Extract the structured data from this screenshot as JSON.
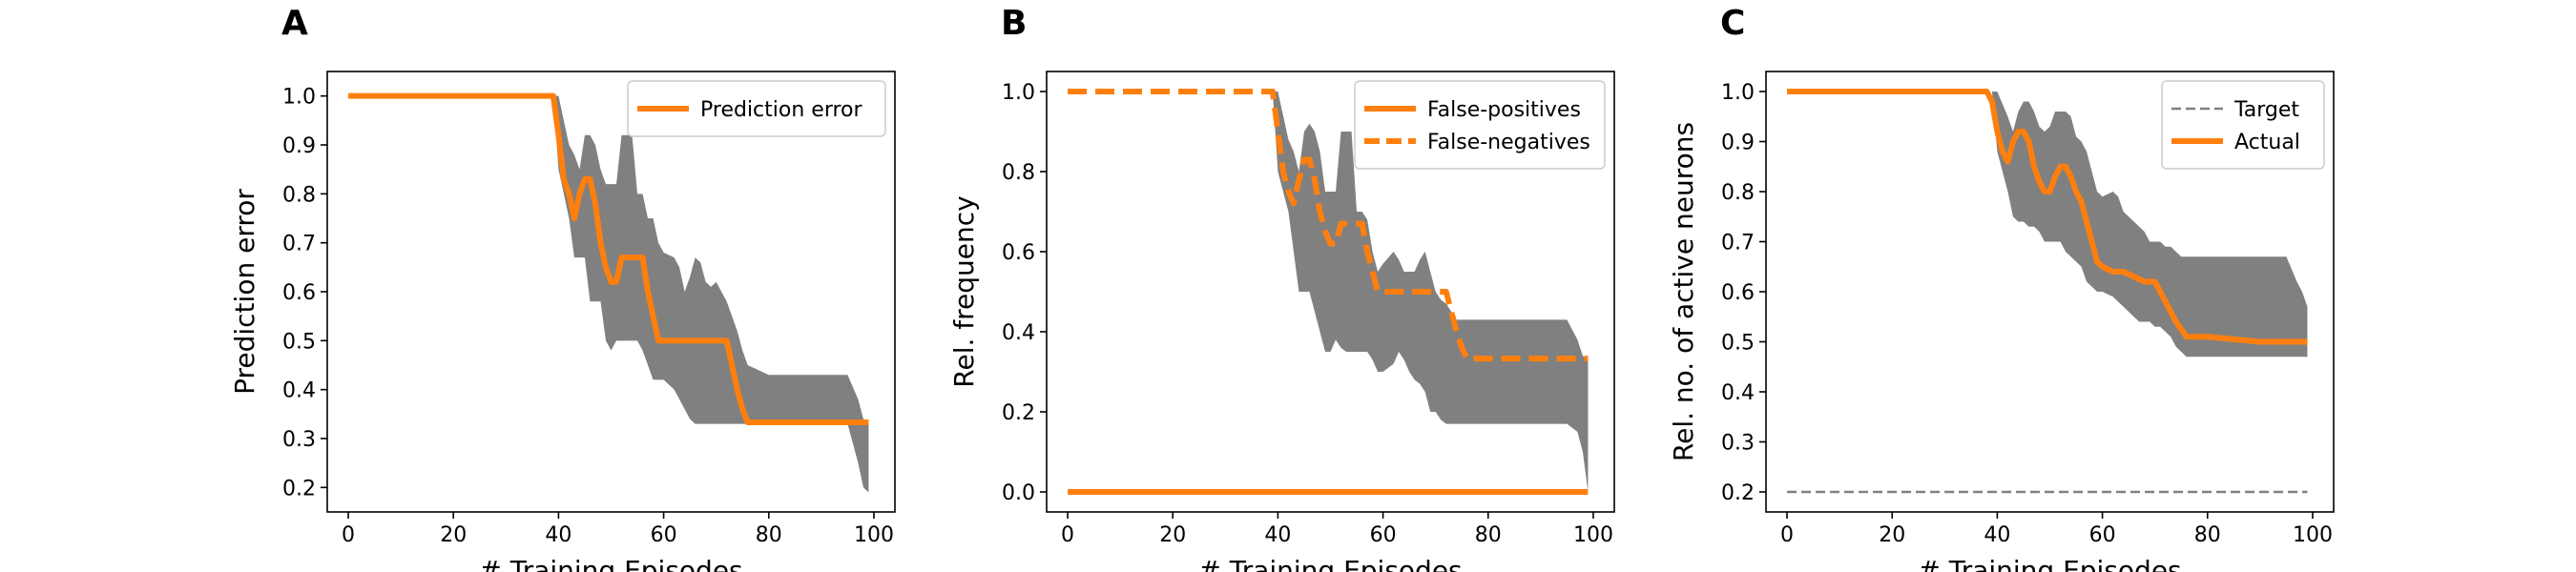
{
  "chart_data": [
    {
      "panel": "A",
      "type": "line",
      "xlabel": "# Training Episodes",
      "ylabel": "Prediction error",
      "xlim": [
        -4,
        104
      ],
      "ylim": [
        0.15,
        1.05
      ],
      "xticks": [
        0,
        20,
        40,
        60,
        80,
        100
      ],
      "yticks": [
        0.2,
        0.3,
        0.4,
        0.5,
        0.6,
        0.7,
        0.8,
        0.9,
        1.0
      ],
      "legend": "top-right",
      "band": {
        "x": [
          0,
          10,
          20,
          30,
          38,
          39,
          40,
          42,
          43,
          44,
          45,
          46,
          47,
          48,
          49,
          50,
          51,
          52,
          53,
          54,
          55,
          56,
          57,
          58,
          59,
          60,
          62,
          63,
          64,
          65,
          66,
          67,
          68,
          69,
          70,
          71,
          72,
          73,
          74,
          75,
          76,
          80,
          85,
          90,
          95,
          97,
          98,
          99
        ],
        "lower": [
          1.0,
          1.0,
          1.0,
          1.0,
          1.0,
          1.0,
          0.85,
          0.75,
          0.67,
          0.67,
          0.67,
          0.58,
          0.58,
          0.58,
          0.5,
          0.48,
          0.5,
          0.5,
          0.5,
          0.5,
          0.5,
          0.48,
          0.45,
          0.42,
          0.42,
          0.42,
          0.4,
          0.38,
          0.36,
          0.34,
          0.33,
          0.33,
          0.33,
          0.33,
          0.33,
          0.33,
          0.33,
          0.33,
          0.33,
          0.33,
          0.33,
          0.33,
          0.33,
          0.33,
          0.33,
          0.25,
          0.2,
          0.19
        ],
        "upper": [
          1.0,
          1.0,
          1.0,
          1.0,
          1.0,
          1.0,
          1.0,
          0.9,
          0.88,
          0.85,
          0.92,
          0.92,
          0.9,
          0.85,
          0.82,
          0.82,
          0.82,
          0.92,
          0.92,
          0.92,
          0.8,
          0.8,
          0.75,
          0.75,
          0.7,
          0.68,
          0.67,
          0.65,
          0.6,
          0.63,
          0.67,
          0.66,
          0.62,
          0.61,
          0.62,
          0.6,
          0.58,
          0.55,
          0.52,
          0.48,
          0.45,
          0.43,
          0.43,
          0.43,
          0.43,
          0.38,
          0.34,
          0.33
        ]
      },
      "series": [
        {
          "name": "Prediction error",
          "style": "solid",
          "color": "#ff7f0e",
          "x": [
            0,
            39,
            40,
            41,
            42,
            43,
            44,
            45,
            46,
            47,
            48,
            49,
            50,
            51,
            52,
            53,
            54,
            55,
            56,
            57,
            58,
            59,
            60,
            65,
            70,
            71,
            72,
            73,
            74,
            75,
            76,
            80,
            90,
            99
          ],
          "y": [
            1.0,
            1.0,
            0.92,
            0.83,
            0.8,
            0.75,
            0.8,
            0.83,
            0.83,
            0.78,
            0.7,
            0.65,
            0.62,
            0.62,
            0.67,
            0.67,
            0.67,
            0.67,
            0.67,
            0.6,
            0.55,
            0.5,
            0.5,
            0.5,
            0.5,
            0.5,
            0.5,
            0.45,
            0.4,
            0.36,
            0.333,
            0.333,
            0.333,
            0.333
          ]
        }
      ]
    },
    {
      "panel": "B",
      "type": "line",
      "xlabel": "# Training Episodes",
      "ylabel": "Rel. frequency",
      "xlim": [
        -4,
        104
      ],
      "ylim": [
        -0.05,
        1.05
      ],
      "xticks": [
        0,
        20,
        40,
        60,
        80,
        100
      ],
      "yticks": [
        0.0,
        0.2,
        0.4,
        0.6,
        0.8,
        1.0
      ],
      "legend": "top-right",
      "band": {
        "x": [
          0,
          10,
          20,
          30,
          38,
          39,
          40,
          42,
          43,
          44,
          45,
          46,
          47,
          48,
          49,
          50,
          51,
          52,
          53,
          54,
          55,
          56,
          57,
          58,
          59,
          60,
          62,
          63,
          64,
          65,
          66,
          67,
          68,
          69,
          70,
          71,
          72,
          73,
          74,
          75,
          76,
          80,
          85,
          90,
          95,
          97,
          98,
          99
        ],
        "lower": [
          1.0,
          1.0,
          1.0,
          1.0,
          1.0,
          1.0,
          0.8,
          0.7,
          0.6,
          0.5,
          0.5,
          0.5,
          0.45,
          0.4,
          0.35,
          0.35,
          0.38,
          0.36,
          0.35,
          0.35,
          0.35,
          0.35,
          0.35,
          0.33,
          0.3,
          0.3,
          0.32,
          0.35,
          0.33,
          0.3,
          0.28,
          0.27,
          0.25,
          0.2,
          0.2,
          0.18,
          0.17,
          0.17,
          0.17,
          0.17,
          0.17,
          0.17,
          0.17,
          0.17,
          0.17,
          0.15,
          0.1,
          0.0
        ],
        "upper": [
          1.0,
          1.0,
          1.0,
          1.0,
          1.0,
          1.0,
          1.0,
          0.88,
          0.85,
          0.8,
          0.9,
          0.92,
          0.9,
          0.85,
          0.75,
          0.75,
          0.75,
          0.9,
          0.9,
          0.9,
          0.7,
          0.7,
          0.68,
          0.6,
          0.55,
          0.57,
          0.6,
          0.58,
          0.55,
          0.55,
          0.55,
          0.58,
          0.6,
          0.55,
          0.5,
          0.48,
          0.47,
          0.45,
          0.43,
          0.43,
          0.43,
          0.43,
          0.43,
          0.43,
          0.43,
          0.38,
          0.34,
          0.33
        ]
      },
      "series": [
        {
          "name": "False-positives",
          "style": "solid",
          "color": "#ff7f0e",
          "x": [
            0,
            99
          ],
          "y": [
            0.0,
            0.0
          ]
        },
        {
          "name": "False-negatives",
          "style": "dashed",
          "color": "#ff7f0e",
          "x": [
            0,
            39,
            40,
            41,
            42,
            43,
            44,
            45,
            46,
            47,
            48,
            49,
            50,
            51,
            52,
            53,
            54,
            55,
            56,
            57,
            58,
            59,
            60,
            65,
            70,
            71,
            72,
            73,
            74,
            75,
            76,
            80,
            90,
            99
          ],
          "y": [
            1.0,
            1.0,
            0.9,
            0.8,
            0.75,
            0.72,
            0.78,
            0.83,
            0.83,
            0.78,
            0.7,
            0.65,
            0.62,
            0.62,
            0.67,
            0.67,
            0.67,
            0.67,
            0.67,
            0.6,
            0.55,
            0.5,
            0.5,
            0.5,
            0.5,
            0.5,
            0.5,
            0.45,
            0.4,
            0.36,
            0.333,
            0.333,
            0.333,
            0.333
          ]
        }
      ]
    },
    {
      "panel": "C",
      "type": "line",
      "xlabel": "# Training Episodes",
      "ylabel": "Rel. no. of active neurons",
      "xlim": [
        -4,
        104
      ],
      "ylim": [
        0.16,
        1.04
      ],
      "xticks": [
        0,
        20,
        40,
        60,
        80,
        100
      ],
      "yticks": [
        0.2,
        0.3,
        0.4,
        0.5,
        0.6,
        0.7,
        0.8,
        0.9,
        1.0
      ],
      "legend": "top-right",
      "band": {
        "x": [
          0,
          10,
          20,
          30,
          38,
          39,
          40,
          42,
          43,
          44,
          45,
          46,
          47,
          48,
          49,
          50,
          51,
          52,
          53,
          54,
          55,
          56,
          57,
          58,
          59,
          60,
          62,
          63,
          64,
          65,
          66,
          67,
          68,
          69,
          70,
          71,
          72,
          73,
          74,
          75,
          76,
          80,
          85,
          90,
          95,
          97,
          98,
          99
        ],
        "lower": [
          1.0,
          1.0,
          1.0,
          1.0,
          1.0,
          1.0,
          0.88,
          0.8,
          0.75,
          0.74,
          0.74,
          0.73,
          0.73,
          0.72,
          0.7,
          0.7,
          0.7,
          0.7,
          0.68,
          0.67,
          0.66,
          0.65,
          0.62,
          0.61,
          0.6,
          0.6,
          0.59,
          0.58,
          0.57,
          0.56,
          0.55,
          0.54,
          0.54,
          0.54,
          0.53,
          0.53,
          0.52,
          0.51,
          0.49,
          0.48,
          0.47,
          0.47,
          0.47,
          0.47,
          0.47,
          0.47,
          0.47,
          0.47
        ],
        "upper": [
          1.0,
          1.0,
          1.0,
          1.0,
          1.0,
          1.0,
          1.0,
          0.95,
          0.92,
          0.96,
          0.98,
          0.98,
          0.96,
          0.93,
          0.92,
          0.93,
          0.96,
          0.96,
          0.96,
          0.95,
          0.91,
          0.9,
          0.88,
          0.84,
          0.8,
          0.79,
          0.8,
          0.79,
          0.76,
          0.75,
          0.74,
          0.73,
          0.72,
          0.7,
          0.7,
          0.7,
          0.69,
          0.69,
          0.68,
          0.67,
          0.67,
          0.67,
          0.67,
          0.67,
          0.67,
          0.62,
          0.6,
          0.57
        ]
      },
      "series": [
        {
          "name": "Target",
          "style": "dashed-thin",
          "color": "#808080",
          "x": [
            0,
            99
          ],
          "y": [
            0.2,
            0.2
          ]
        },
        {
          "name": "Actual",
          "style": "solid",
          "color": "#ff7f0e",
          "x": [
            0,
            38,
            39,
            40,
            41,
            42,
            43,
            44,
            45,
            46,
            47,
            48,
            49,
            50,
            51,
            52,
            53,
            54,
            55,
            56,
            57,
            58,
            59,
            60,
            62,
            64,
            66,
            68,
            70,
            72,
            74,
            76,
            80,
            90,
            99
          ],
          "y": [
            1.0,
            1.0,
            0.98,
            0.92,
            0.88,
            0.86,
            0.9,
            0.92,
            0.92,
            0.9,
            0.85,
            0.82,
            0.8,
            0.8,
            0.83,
            0.85,
            0.85,
            0.83,
            0.8,
            0.78,
            0.74,
            0.7,
            0.66,
            0.65,
            0.64,
            0.64,
            0.63,
            0.62,
            0.62,
            0.58,
            0.54,
            0.51,
            0.51,
            0.5,
            0.5
          ]
        }
      ]
    }
  ]
}
